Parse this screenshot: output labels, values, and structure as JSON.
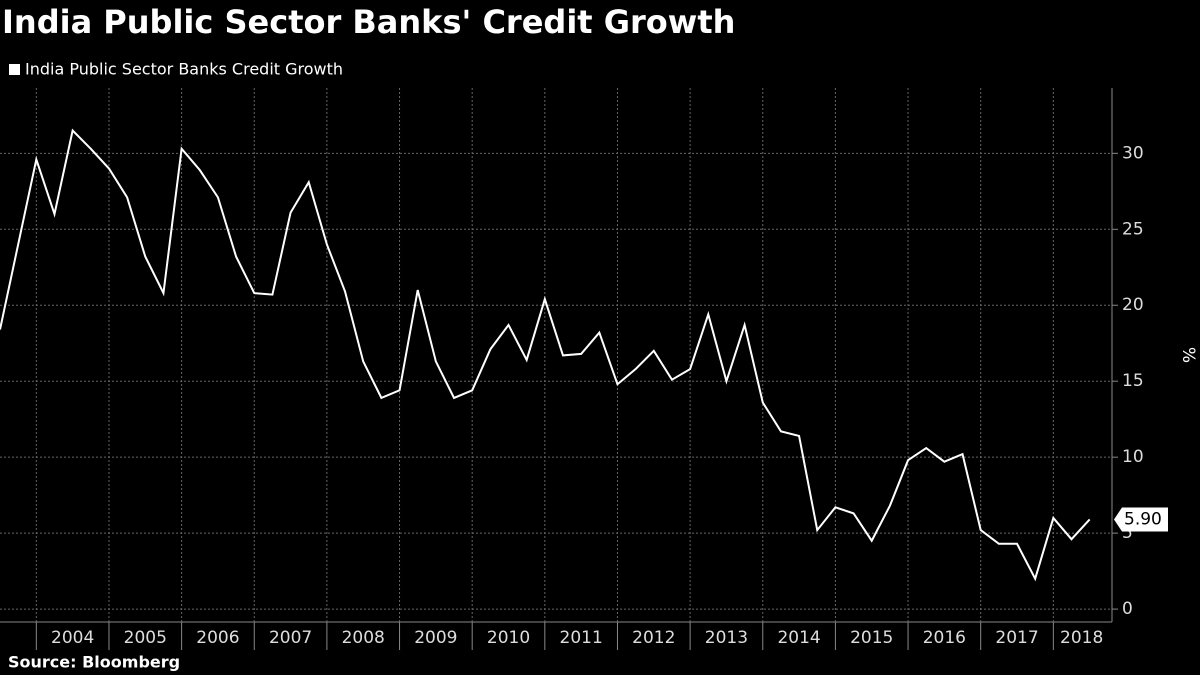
{
  "chart_data": {
    "type": "line",
    "title": "India Public Sector Banks' Credit Growth",
    "y_label": "%",
    "source": "Source: Bloomberg",
    "x": [
      2003.5,
      2003.75,
      2004,
      2004.25,
      2004.5,
      2004.75,
      2005,
      2005.25,
      2005.5,
      2005.75,
      2006,
      2006.25,
      2006.5,
      2006.75,
      2007,
      2007.25,
      2007.5,
      2007.75,
      2008,
      2008.25,
      2008.5,
      2008.75,
      2009,
      2009.25,
      2009.5,
      2009.75,
      2010,
      2010.25,
      2010.5,
      2010.75,
      2011,
      2011.25,
      2011.5,
      2011.75,
      2012,
      2012.25,
      2012.5,
      2012.75,
      2013,
      2013.25,
      2013.5,
      2013.75,
      2014,
      2014.25,
      2014.5,
      2014.75,
      2015,
      2015.25,
      2015.5,
      2015.75,
      2016,
      2016.25,
      2016.5,
      2016.75,
      2017,
      2017.25,
      2017.5,
      2017.75,
      2018,
      2018.25,
      2018.5
    ],
    "series": [
      {
        "name": "India Public Sector Banks Credit Growth",
        "color": "#ffffff",
        "values": [
          18.4,
          24,
          29.6,
          26,
          31.5,
          30.3,
          29,
          27.1,
          23.2,
          20.8,
          30.3,
          28.9,
          27.1,
          23.2,
          20.8,
          20.7,
          26.1,
          28.1,
          24,
          20.9,
          16.3,
          13.9,
          14.4,
          21,
          16.3,
          13.9,
          14.4,
          17.1,
          18.7,
          16.4,
          20.4,
          16.7,
          16.8,
          18.2,
          14.8,
          15.8,
          17,
          15.1,
          15.8,
          19.4,
          15,
          18.7,
          13.6,
          11.7,
          11.4,
          5.2,
          6.7,
          6.3,
          4.5,
          6.8,
          9.8,
          10.6,
          9.7,
          10.2,
          5.2,
          4.3,
          4.3,
          2,
          6,
          4.6,
          5.9
        ],
        "value_labels": [
          null,
          null,
          null,
          null,
          null,
          null,
          null,
          null,
          null,
          null,
          null,
          null,
          null,
          null,
          null,
          null,
          null,
          null,
          null,
          null,
          null,
          null,
          null,
          null,
          null,
          null,
          null,
          null,
          null,
          null,
          null,
          null,
          null,
          null,
          null,
          null,
          null,
          null,
          null,
          null,
          null,
          null,
          null,
          null,
          null,
          null,
          null,
          null,
          null,
          null,
          null,
          null,
          null,
          null,
          null,
          null,
          null,
          null,
          null,
          null,
          "5.90"
        ]
      }
    ],
    "xlim": [
      2003.5,
      2018.78
    ],
    "xticks": [
      2004,
      2005,
      2006,
      2007,
      2008,
      2009,
      2010,
      2011,
      2012,
      2013,
      2014,
      2015,
      2016,
      2017,
      2018
    ],
    "ylim": [
      -0.85,
      34.3
    ],
    "yticks": [
      0,
      5,
      10,
      15,
      20,
      25,
      30
    ],
    "grid": true,
    "legend": "top-left"
  }
}
